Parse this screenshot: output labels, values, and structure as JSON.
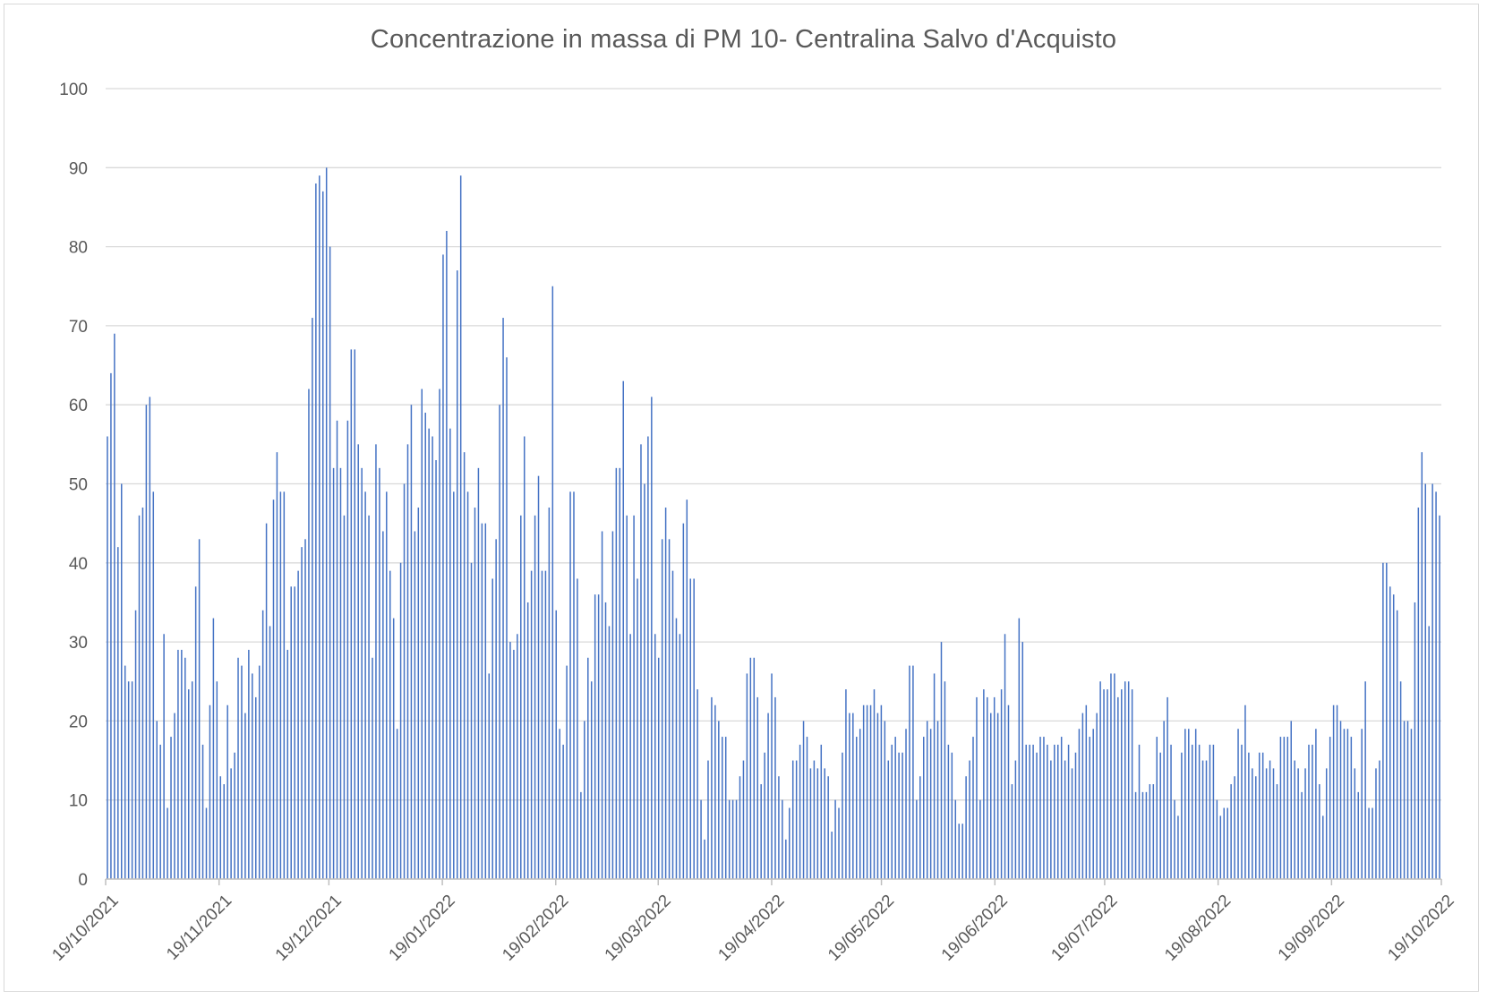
{
  "chart_data": {
    "type": "bar",
    "title": "Concentrazione  in massa di PM 10- Centralina Salvo d'Acquisto",
    "xlabel": "",
    "ylabel": "",
    "ylim": [
      0,
      100
    ],
    "y_ticks": [
      0,
      10,
      20,
      30,
      40,
      50,
      60,
      70,
      80,
      90,
      100
    ],
    "x_tick_labels": [
      "19/10/2021",
      "19/11/2021",
      "19/12/2021",
      "19/01/2022",
      "19/02/2022",
      "19/03/2022",
      "19/04/2022",
      "19/05/2022",
      "19/06/2022",
      "19/07/2022",
      "19/08/2022",
      "19/09/2022",
      "19/10/2022"
    ],
    "x_tick_days": [
      0,
      31,
      61,
      92,
      123,
      151,
      182,
      212,
      243,
      273,
      304,
      335,
      365
    ],
    "start_date": "19/10/2021",
    "grid": true,
    "legend": "none",
    "bar_color": "#4472c4",
    "values": [
      56,
      64,
      69,
      42,
      50,
      27,
      25,
      25,
      34,
      46,
      47,
      60,
      61,
      49,
      20,
      17,
      31,
      9,
      18,
      21,
      29,
      29,
      28,
      24,
      25,
      37,
      43,
      17,
      9,
      22,
      33,
      25,
      13,
      12,
      22,
      14,
      16,
      28,
      27,
      21,
      29,
      26,
      23,
      27,
      34,
      45,
      32,
      48,
      54,
      49,
      49,
      29,
      37,
      37,
      39,
      42,
      43,
      62,
      71,
      88,
      89,
      87,
      90,
      80,
      52,
      58,
      52,
      46,
      58,
      67,
      67,
      55,
      52,
      49,
      46,
      28,
      55,
      52,
      44,
      49,
      39,
      33,
      19,
      40,
      50,
      55,
      60,
      44,
      47,
      62,
      59,
      57,
      56,
      53,
      62,
      79,
      82,
      57,
      49,
      77,
      89,
      54,
      49,
      40,
      47,
      52,
      45,
      45,
      26,
      38,
      43,
      60,
      71,
      66,
      30,
      29,
      31,
      46,
      56,
      35,
      39,
      46,
      51,
      39,
      39,
      47,
      75,
      34,
      19,
      17,
      27,
      49,
      49,
      38,
      11,
      20,
      28,
      25,
      36,
      36,
      44,
      35,
      32,
      44,
      52,
      52,
      63,
      46,
      31,
      46,
      38,
      55,
      50,
      56,
      61,
      31,
      28,
      43,
      47,
      43,
      39,
      33,
      31,
      45,
      48,
      38,
      38,
      24,
      10,
      5,
      15,
      23,
      22,
      20,
      18,
      18,
      10,
      10,
      10,
      13,
      15,
      26,
      28,
      28,
      23,
      12,
      16,
      21,
      26,
      23,
      13,
      10,
      5,
      9,
      15,
      15,
      17,
      20,
      18,
      14,
      15,
      14,
      17,
      14,
      13,
      6,
      10,
      9,
      16,
      24,
      21,
      21,
      18,
      19,
      22,
      22,
      22,
      24,
      21,
      22,
      20,
      15,
      17,
      18,
      16,
      16,
      19,
      27,
      27,
      10,
      13,
      18,
      20,
      19,
      26,
      20,
      30,
      25,
      17,
      16,
      10,
      7,
      7,
      13,
      15,
      18,
      23,
      10,
      24,
      23,
      21,
      23,
      21,
      24,
      31,
      22,
      12,
      15,
      33,
      30,
      17,
      17,
      17,
      16,
      18,
      18,
      17,
      15,
      17,
      17,
      18,
      15,
      17,
      14,
      16,
      19,
      21,
      22,
      18,
      19,
      21,
      25,
      24,
      24,
      26,
      26,
      23,
      24,
      25,
      25,
      24,
      11,
      17,
      11,
      11,
      12,
      12,
      18,
      16,
      20,
      23,
      17,
      10,
      8,
      16,
      19,
      19,
      17,
      19,
      17,
      15,
      15,
      17,
      17,
      10,
      8,
      9,
      9,
      12,
      13,
      19,
      17,
      22,
      16,
      14,
      13,
      16,
      16,
      14,
      15,
      14,
      12,
      18,
      18,
      18,
      20,
      15,
      14,
      11,
      14,
      17,
      17,
      19,
      12,
      8,
      14,
      18,
      22,
      22,
      20,
      19,
      19,
      18,
      14,
      11,
      19,
      25,
      9,
      9,
      14,
      15,
      40,
      40,
      37,
      36,
      34,
      25,
      20,
      20,
      19,
      35,
      47,
      54,
      50,
      32,
      50,
      49,
      46
    ]
  }
}
